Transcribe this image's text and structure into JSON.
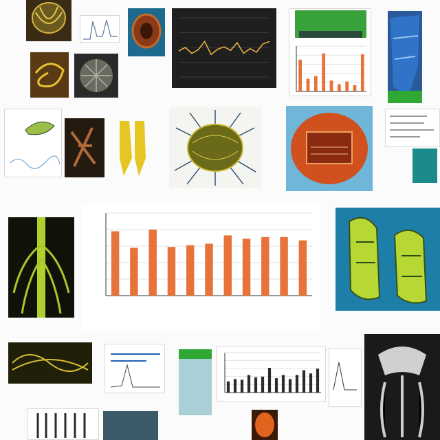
{
  "image_kind": "collage of scientific illustrations, photographs and charts",
  "captions": {
    "top_right": "",
    "row2_left": "",
    "row2_center_chart_title": "",
    "row3_right": "",
    "bottom_left": ""
  },
  "colors": {
    "bar_orange": "#e8733a",
    "bar_dark": "#2b2b2b",
    "accent_green": "#2fa836",
    "accent_blue": "#1f63b0",
    "insect_green": "#b7d834",
    "insect_teal": "#1d7fa8"
  },
  "chart_data": [
    {
      "type": "bar",
      "name": "main-orange-bar-chart",
      "title": "",
      "xlabel": "",
      "ylabel": "",
      "ylim": [
        0,
        100
      ],
      "grid": true,
      "categories": [
        "",
        "",
        "",
        "",
        "",
        "",
        "",
        "",
        "",
        "",
        ""
      ],
      "values": [
        78,
        58,
        80,
        59,
        61,
        63,
        73,
        69,
        71,
        71,
        67
      ]
    },
    {
      "type": "bar",
      "name": "small-orange-bar-chart",
      "title": "",
      "ylim": [
        0,
        100
      ],
      "grid": true,
      "categories": [
        "",
        "",
        "",
        "",
        "",
        "",
        "",
        "",
        ""
      ],
      "values": [
        70,
        28,
        34,
        84,
        24,
        16,
        22,
        14,
        82
      ]
    },
    {
      "type": "bar",
      "name": "small-dark-bar-chart",
      "title": "",
      "ylim": [
        0,
        100
      ],
      "grid": true,
      "categories": [
        "",
        "",
        "",
        "",
        "",
        "",
        "",
        "",
        "",
        "",
        "",
        "",
        "",
        ""
      ],
      "values": [
        28,
        34,
        32,
        44,
        38,
        40,
        62,
        36,
        44,
        34,
        44,
        56,
        48,
        60
      ]
    },
    {
      "type": "line",
      "name": "dark-line-chart",
      "title": "",
      "series": [
        {
          "values": [
            44,
            50,
            40,
            46,
            60,
            38,
            47,
            51,
            45,
            58,
            40,
            48,
            42,
            56,
            60
          ]
        }
      ],
      "ylim": [
        0,
        100
      ],
      "grid": true
    }
  ]
}
